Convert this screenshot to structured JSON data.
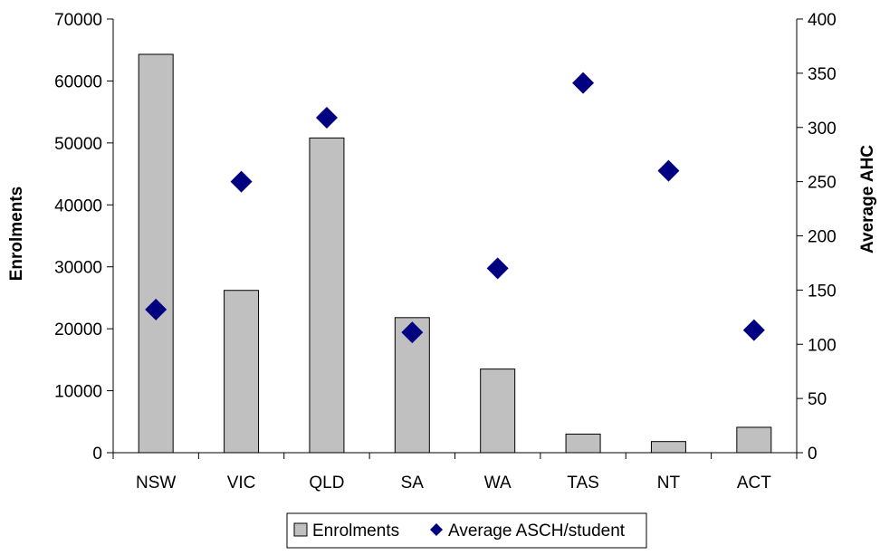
{
  "chart_data": {
    "type": "bar",
    "categories": [
      "NSW",
      "VIC",
      "QLD",
      "SA",
      "WA",
      "TAS",
      "NT",
      "ACT"
    ],
    "series": [
      {
        "name": "Enrolments",
        "kind": "bar",
        "axis": "left",
        "color": "#c0c0c0",
        "values": [
          64300,
          26200,
          50800,
          21800,
          13500,
          3000,
          1800,
          4100
        ]
      },
      {
        "name": "Average ASCH/student",
        "kind": "scatter",
        "axis": "right",
        "marker": "diamond",
        "color": "#000080",
        "values": [
          132,
          250,
          309,
          111,
          170,
          341,
          260,
          113
        ]
      }
    ],
    "ylabel": "Enrolments",
    "y2label": "Average AHC",
    "ylim": [
      0,
      70000
    ],
    "y2lim": [
      0,
      400
    ],
    "yticks": [
      "0",
      "10000",
      "20000",
      "30000",
      "40000",
      "50000",
      "60000",
      "70000"
    ],
    "y2ticks": [
      "0",
      "50",
      "100",
      "150",
      "200",
      "250",
      "300",
      "350",
      "400"
    ],
    "grid": false,
    "legend": "bottom"
  }
}
